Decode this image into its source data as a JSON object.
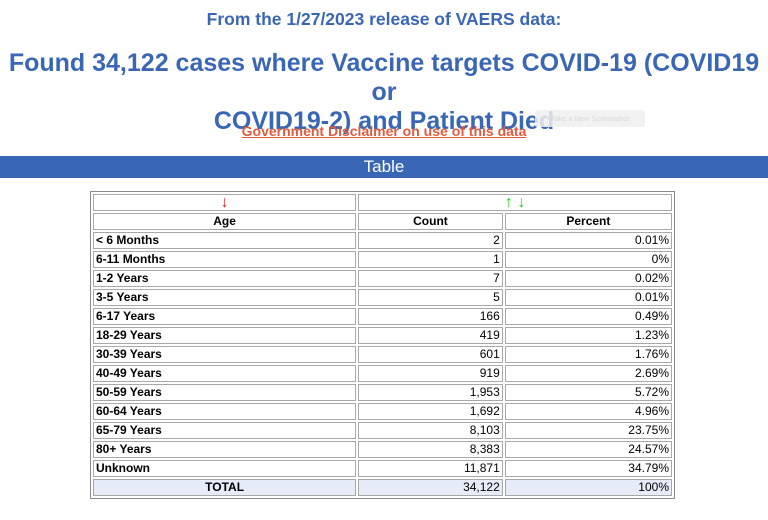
{
  "header": {
    "subtitle": "From the 1/27/2023 release of VAERS data:",
    "title_line1": "Found 34,122 cases where Vaccine targets COVID-19 (COVID19 or",
    "title_line2": "COVID19-2) and Patient Died",
    "disclaimer_link": "Government Disclaimer on use of this data",
    "tooltip": "Take a New Screenshot"
  },
  "section_bar": {
    "label": "Table"
  },
  "table": {
    "sort_arrows": {
      "age": "🡓",
      "count": "🡑🡓"
    },
    "columns": {
      "age": "Age",
      "count": "Count",
      "percent": "Percent"
    },
    "rows": [
      {
        "age": "< 6 Months",
        "count": "2",
        "percent": "0.01%"
      },
      {
        "age": "6-11 Months",
        "count": "1",
        "percent": "0%"
      },
      {
        "age": "1-2 Years",
        "count": "7",
        "percent": "0.02%"
      },
      {
        "age": "3-5 Years",
        "count": "5",
        "percent": "0.01%"
      },
      {
        "age": "6-17 Years",
        "count": "166",
        "percent": "0.49%"
      },
      {
        "age": "18-29 Years",
        "count": "419",
        "percent": "1.23%"
      },
      {
        "age": "30-39 Years",
        "count": "601",
        "percent": "1.76%"
      },
      {
        "age": "40-49 Years",
        "count": "919",
        "percent": "2.69%"
      },
      {
        "age": "50-59 Years",
        "count": "1,953",
        "percent": "5.72%"
      },
      {
        "age": "60-64 Years",
        "count": "1,692",
        "percent": "4.96%"
      },
      {
        "age": "65-79 Years",
        "count": "8,103",
        "percent": "23.75%"
      },
      {
        "age": "80+ Years",
        "count": "8,383",
        "percent": "24.57%"
      },
      {
        "age": "Unknown",
        "count": "11,871",
        "percent": "34.79%"
      }
    ],
    "total": {
      "label": "TOTAL",
      "count": "34,122",
      "percent": "100%"
    }
  },
  "colors": {
    "heading_blue": "#3a67b5",
    "link_red": "#e25a3c",
    "arrow_red": "#e02020",
    "arrow_green": "#22cc22",
    "total_row_bg": "#e7ecf9"
  }
}
